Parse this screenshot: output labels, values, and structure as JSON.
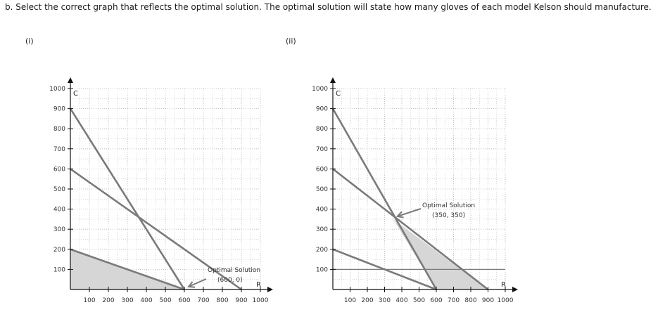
{
  "question": "b. Select the correct graph that reflects the optimal solution. The optimal solution will state how many gloves of each model Kelson should manufacture.",
  "options": [
    "(i)",
    "(ii)"
  ],
  "colors": {
    "line": "#7a7a7a",
    "fill": "#d6d6d6",
    "grid": "#b5b5b5",
    "axis": "#111111"
  },
  "chart_data": [
    {
      "type": "line",
      "option_label": "(i)",
      "xlabel": "R",
      "ylabel": "C",
      "xlim": [
        0,
        1000
      ],
      "ylim": [
        0,
        1000
      ],
      "x_ticks": [
        100,
        200,
        300,
        400,
        500,
        600,
        700,
        800,
        900,
        1000
      ],
      "y_ticks": [
        100,
        200,
        300,
        400,
        500,
        600,
        700,
        800,
        900,
        1000
      ],
      "grid": true,
      "series": [
        {
          "points": [
            [
              0,
              900
            ],
            [
              600,
              0
            ]
          ]
        },
        {
          "points": [
            [
              0,
              600
            ],
            [
              900,
              0
            ]
          ]
        },
        {
          "points": [
            [
              0,
              200
            ],
            [
              600,
              0
            ]
          ]
        }
      ],
      "feasible_region": [
        [
          0,
          0
        ],
        [
          0,
          200
        ],
        [
          600,
          0
        ]
      ],
      "annotation": {
        "lines": [
          "Optimal Solution",
          "(600, 0)"
        ],
        "point": [
          600,
          0
        ]
      }
    },
    {
      "type": "line",
      "option_label": "(ii)",
      "xlabel": "R",
      "ylabel": "C",
      "xlim": [
        0,
        1000
      ],
      "ylim": [
        0,
        1000
      ],
      "x_ticks": [
        100,
        200,
        300,
        400,
        500,
        600,
        700,
        800,
        900,
        1000
      ],
      "y_ticks": [
        100,
        200,
        300,
        400,
        500,
        600,
        700,
        800,
        900,
        1000
      ],
      "grid": true,
      "series": [
        {
          "points": [
            [
              0,
              900
            ],
            [
              600,
              0
            ]
          ]
        },
        {
          "points": [
            [
              0,
              600
            ],
            [
              900,
              0
            ]
          ]
        },
        {
          "points": [
            [
              0,
              200
            ],
            [
              600,
              0
            ]
          ]
        },
        {
          "points": [
            [
              0,
              100
            ],
            [
              1000,
              100
            ]
          ]
        }
      ],
      "feasible_region": [
        [
          350,
          350
        ],
        [
          600,
          0
        ],
        [
          900,
          0
        ]
      ],
      "annotation": {
        "lines": [
          "Optimal Solution",
          "(350, 350)"
        ],
        "point": [
          350,
          350
        ]
      }
    }
  ]
}
